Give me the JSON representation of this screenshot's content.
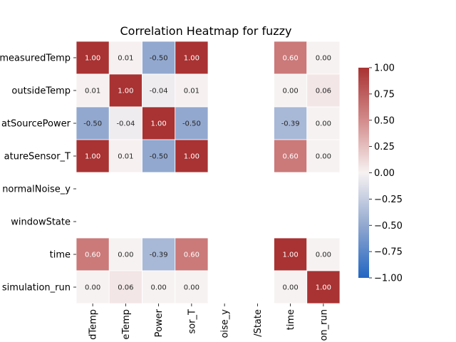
{
  "chart_data": {
    "type": "heatmap",
    "title": "Correlation Heatmap for fuzzy",
    "row_labels": [
      "measuredTemp",
      "outsideTemp",
      "heatSourcePower",
      "temperatureSensor_T",
      "normalNoise_y",
      "windowState",
      "time",
      "simulation_run"
    ],
    "col_labels": [
      "measuredTemp",
      "outsideTemp",
      "heatSourcePower",
      "temperatureSensor_T",
      "normalNoise_y",
      "windowState",
      "time",
      "simulation_run"
    ],
    "row_labels_visible": [
      "measuredTemp",
      "outsideTemp",
      "atSourcePower",
      "atureSensor_T",
      "normalNoise_y",
      "windowState",
      "time",
      "simulation_run"
    ],
    "col_labels_visible": [
      "dTemp",
      "eTemp",
      "Power",
      "sor_T",
      "oise_y",
      "/State",
      "time",
      "on_run"
    ],
    "values": [
      [
        1.0,
        0.01,
        -0.5,
        1.0,
        null,
        null,
        0.6,
        0.0
      ],
      [
        0.01,
        1.0,
        -0.04,
        0.01,
        null,
        null,
        -0.0,
        0.06
      ],
      [
        -0.5,
        -0.04,
        1.0,
        -0.5,
        null,
        null,
        -0.39,
        -0.0
      ],
      [
        1.0,
        0.01,
        -0.5,
        1.0,
        null,
        null,
        0.6,
        0.0
      ],
      [
        null,
        null,
        null,
        null,
        null,
        null,
        null,
        null
      ],
      [
        null,
        null,
        null,
        null,
        null,
        null,
        null,
        null
      ],
      [
        0.6,
        -0.0,
        -0.39,
        0.6,
        null,
        null,
        1.0,
        0.0
      ],
      [
        0.0,
        0.06,
        -0.0,
        0.0,
        null,
        null,
        0.0,
        1.0
      ]
    ],
    "colormap": "vlag",
    "vmin": -1.0,
    "vmax": 1.0,
    "colorbar_ticks": [
      -1.0,
      -0.75,
      -0.5,
      -0.25,
      0.0,
      0.25,
      0.5,
      0.75,
      1.0
    ],
    "colorbar_tick_labels": [
      "−1.00",
      "−0.75",
      "−0.50",
      "−0.25",
      "0.00",
      "0.25",
      "0.50",
      "0.75",
      "1.00"
    ],
    "colors": {
      "negative": "#2166c3",
      "neutral": "#f7f2f2",
      "positive": "#a93232"
    }
  }
}
